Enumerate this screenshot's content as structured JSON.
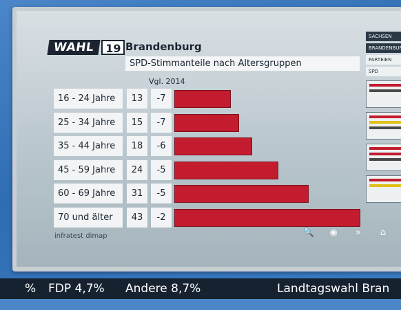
{
  "header": {
    "logo_word": "WAHL",
    "logo_year": "19",
    "title": "Brandenburg",
    "subtitle": "SPD-Stimmanteile nach Altersgruppen",
    "comparison_label": "Vgl. 2014"
  },
  "rows": [
    {
      "age": "16 - 24 Jahre",
      "value": "13",
      "diff": "-7"
    },
    {
      "age": "25 - 34 Jahre",
      "value": "15",
      "diff": "-7"
    },
    {
      "age": "35 - 44 Jahre",
      "value": "18",
      "diff": "-6"
    },
    {
      "age": "45 - 59 Jahre",
      "value": "24",
      "diff": "-5"
    },
    {
      "age": "60 - 69 Jahre",
      "value": "31",
      "diff": "-5"
    },
    {
      "age": "70 und älter",
      "value": "43",
      "diff": "-2"
    }
  ],
  "chart_data": {
    "type": "bar",
    "categories": [
      "16 - 24 Jahre",
      "25 - 34 Jahre",
      "35 - 44 Jahre",
      "45 - 59 Jahre",
      "60 - 69 Jahre",
      "70 und älter"
    ],
    "values": [
      13,
      15,
      18,
      24,
      31,
      43
    ],
    "title": "SPD-Stimmanteile nach Altersgruppen",
    "xlabel": "",
    "ylabel": "",
    "bar_color": "#c21c2e"
  },
  "source": "infratest dimap",
  "controls": [
    {
      "icon": "search-icon",
      "glyph": "🔍"
    },
    {
      "icon": "target-icon",
      "glyph": "◉"
    },
    {
      "icon": "forward-icon",
      "glyph": "»"
    },
    {
      "icon": "home-icon",
      "glyph": "⌂"
    }
  ],
  "side_panel": {
    "tab_1": "SACHSEN",
    "tab_2": "BRANDENBURG",
    "tab_3": "PARTEIEN",
    "tab_4": "SPD"
  },
  "ticker": {
    "item_1": "%",
    "item_2": "FDP  4,7%",
    "item_3": "Andere  8,7%",
    "item_4": "Landtagswahl Bran"
  }
}
